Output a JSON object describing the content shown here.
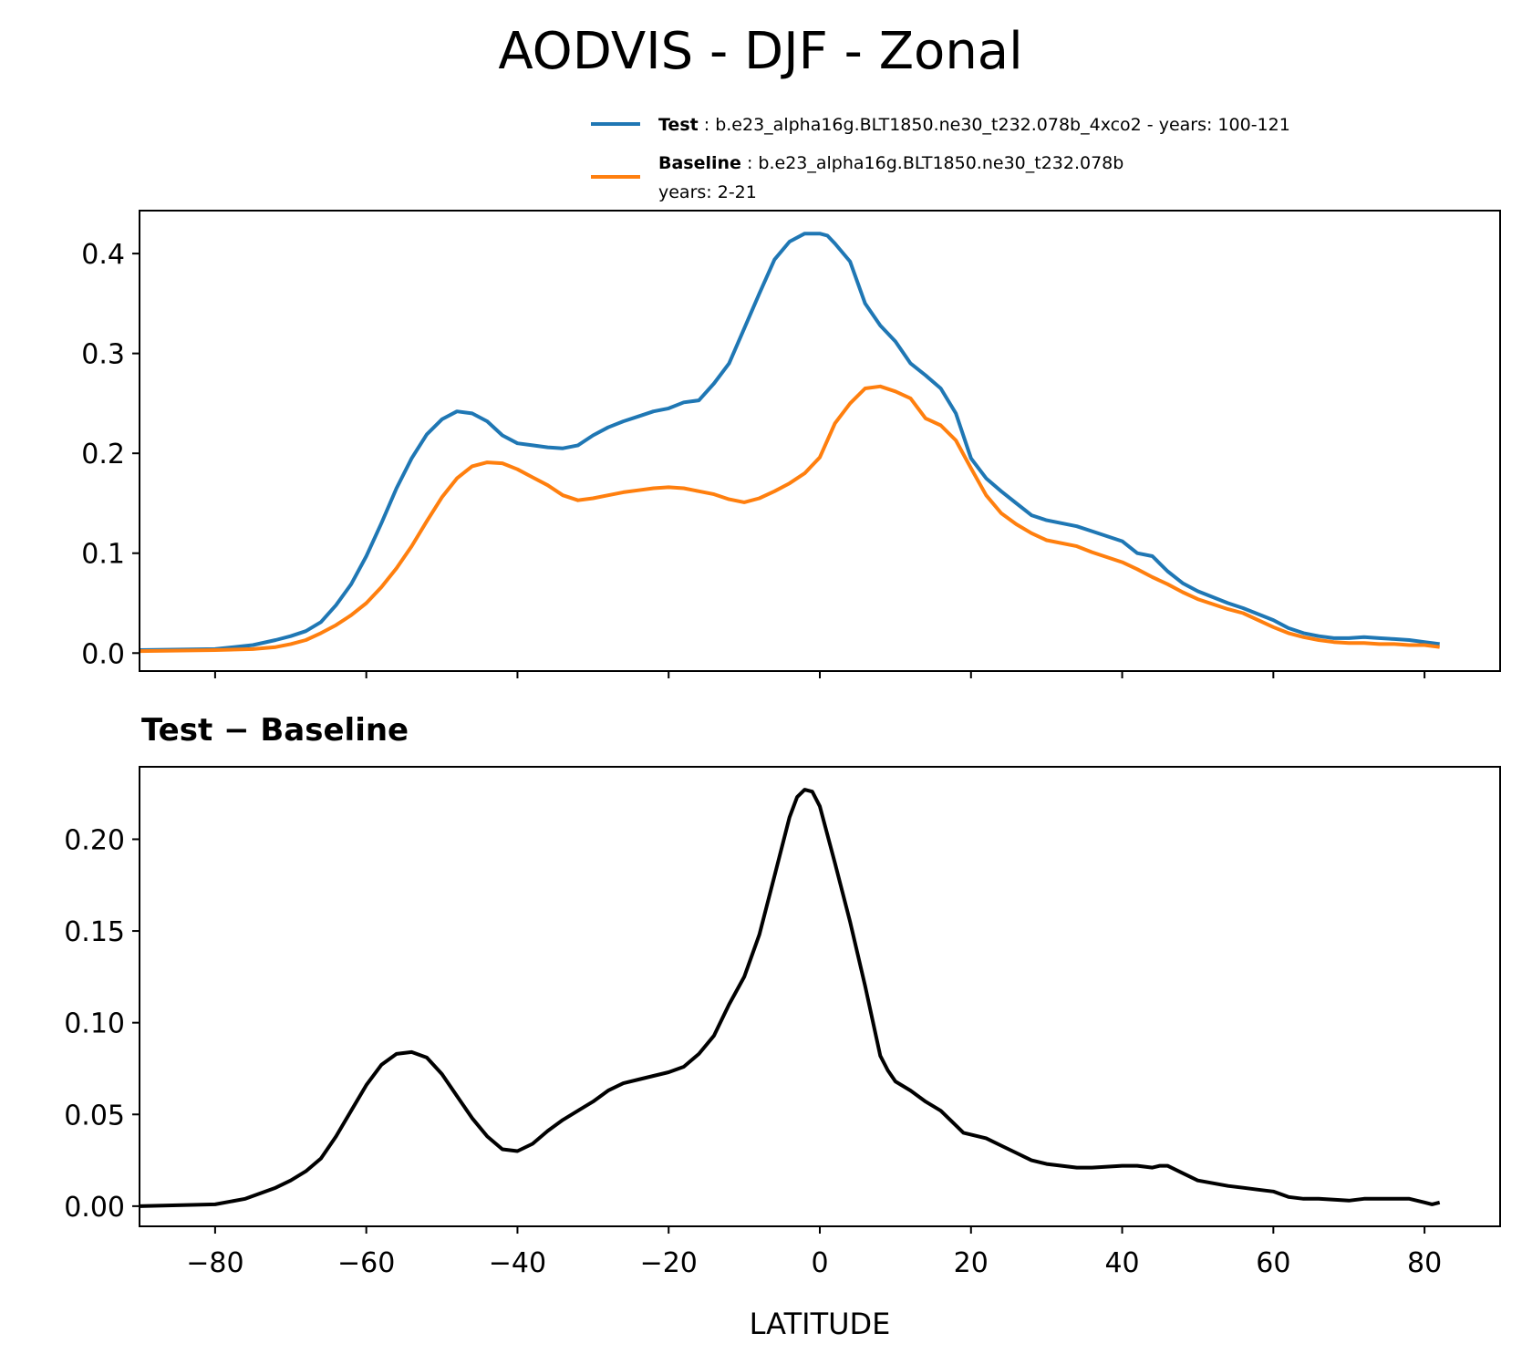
{
  "chart_data": [
    {
      "type": "line",
      "title": "AODVIS - DJF - Zonal",
      "xlim": [
        -90,
        90
      ],
      "ylim": [
        -0.018,
        0.443
      ],
      "yticks": [
        "0.0",
        "0.1",
        "0.2",
        "0.3",
        "0.4"
      ],
      "legend": {
        "placement": "above-top-right",
        "test": {
          "label": "Test",
          "separator": " : ",
          "text": "b.e23_alpha16g.BLT1850.ne30_t232.078b_4xco2 - years: 100-121"
        },
        "baseline": {
          "label": "Baseline",
          "separator": " : ",
          "text": "b.e23_alpha16g.BLT1850.ne30_t232.078b",
          "text2": "years: 2-21"
        }
      },
      "series": [
        {
          "name": "Test",
          "color": "#1f77b4",
          "x": [
            -90,
            -80,
            -75,
            -72,
            -70,
            -68,
            -66,
            -64,
            -62,
            -60,
            -58,
            -56,
            -54,
            -52,
            -50,
            -48,
            -46,
            -44,
            -42,
            -40,
            -38,
            -36,
            -34,
            -32,
            -30,
            -28,
            -26,
            -24,
            -22,
            -20,
            -18,
            -16,
            -14,
            -12,
            -10,
            -8,
            -6,
            -4,
            -2,
            0,
            1,
            2,
            4,
            6,
            8,
            10,
            12,
            14,
            16,
            18,
            20,
            22,
            24,
            26,
            28,
            30,
            34,
            36,
            40,
            42,
            44,
            46,
            48,
            50,
            54,
            56,
            60,
            62,
            64,
            66,
            68,
            70,
            72,
            74,
            76,
            78,
            80,
            82
          ],
          "values": [
            0.003,
            0.004,
            0.008,
            0.013,
            0.017,
            0.022,
            0.031,
            0.048,
            0.069,
            0.097,
            0.13,
            0.165,
            0.195,
            0.219,
            0.234,
            0.242,
            0.24,
            0.232,
            0.218,
            0.21,
            0.208,
            0.206,
            0.205,
            0.208,
            0.218,
            0.226,
            0.232,
            0.237,
            0.242,
            0.245,
            0.251,
            0.253,
            0.27,
            0.29,
            0.325,
            0.36,
            0.394,
            0.412,
            0.42,
            0.42,
            0.418,
            0.41,
            0.392,
            0.35,
            0.328,
            0.312,
            0.29,
            0.278,
            0.265,
            0.24,
            0.195,
            0.175,
            0.162,
            0.15,
            0.138,
            0.133,
            0.127,
            0.122,
            0.112,
            0.1,
            0.097,
            0.082,
            0.07,
            0.062,
            0.05,
            0.045,
            0.033,
            0.025,
            0.02,
            0.017,
            0.015,
            0.015,
            0.016,
            0.015,
            0.014,
            0.013,
            0.011,
            0.009
          ]
        },
        {
          "name": "Baseline",
          "color": "#ff7f0e",
          "x": [
            -90,
            -80,
            -75,
            -72,
            -70,
            -68,
            -66,
            -64,
            -62,
            -60,
            -58,
            -56,
            -54,
            -52,
            -50,
            -48,
            -46,
            -44,
            -42,
            -40,
            -38,
            -36,
            -34,
            -32,
            -30,
            -28,
            -26,
            -24,
            -22,
            -20,
            -18,
            -16,
            -14,
            -12,
            -10,
            -8,
            -6,
            -4,
            -2,
            0,
            2,
            4,
            6,
            8,
            10,
            12,
            14,
            16,
            18,
            20,
            22,
            24,
            26,
            28,
            30,
            34,
            36,
            40,
            42,
            44,
            46,
            48,
            50,
            54,
            56,
            60,
            62,
            64,
            66,
            68,
            70,
            72,
            74,
            76,
            78,
            80,
            82
          ],
          "values": [
            0.002,
            0.003,
            0.004,
            0.006,
            0.009,
            0.013,
            0.02,
            0.028,
            0.038,
            0.05,
            0.066,
            0.085,
            0.107,
            0.132,
            0.156,
            0.175,
            0.187,
            0.191,
            0.19,
            0.184,
            0.176,
            0.168,
            0.158,
            0.153,
            0.155,
            0.158,
            0.161,
            0.163,
            0.165,
            0.166,
            0.165,
            0.162,
            0.159,
            0.154,
            0.151,
            0.155,
            0.162,
            0.17,
            0.18,
            0.196,
            0.23,
            0.25,
            0.265,
            0.267,
            0.262,
            0.255,
            0.235,
            0.228,
            0.213,
            0.185,
            0.158,
            0.14,
            0.129,
            0.12,
            0.113,
            0.107,
            0.101,
            0.091,
            0.084,
            0.076,
            0.069,
            0.061,
            0.054,
            0.044,
            0.04,
            0.026,
            0.02,
            0.016,
            0.013,
            0.011,
            0.01,
            0.01,
            0.009,
            0.009,
            0.008,
            0.008,
            0.006
          ]
        }
      ]
    },
    {
      "type": "line",
      "title": "Test − Baseline",
      "xlabel": "LATITUDE",
      "xlim": [
        -90,
        90
      ],
      "ylim": [
        -0.011,
        0.2395
      ],
      "xticks": [
        "−80",
        "−60",
        "−40",
        "−20",
        "0",
        "20",
        "40",
        "60",
        "80"
      ],
      "yticks": [
        "0.00",
        "0.05",
        "0.10",
        "0.15",
        "0.20"
      ],
      "series": [
        {
          "name": "Test − Baseline",
          "color": "#000000",
          "x": [
            -90,
            -80,
            -76,
            -72,
            -70,
            -68,
            -66,
            -64,
            -62,
            -60,
            -58,
            -56,
            -54,
            -52,
            -50,
            -48,
            -46,
            -44,
            -42,
            -40,
            -38,
            -36,
            -34,
            -32,
            -30,
            -28,
            -26,
            -24,
            -22,
            -20,
            -18,
            -16,
            -14,
            -12,
            -10,
            -8,
            -6,
            -4,
            -3,
            -2,
            -1,
            0,
            2,
            4,
            6,
            8,
            9,
            10,
            12,
            14,
            16,
            18,
            19,
            20,
            22,
            24,
            26,
            28,
            30,
            34,
            36,
            40,
            42,
            44,
            45,
            46,
            48,
            50,
            54,
            56,
            58,
            60,
            62,
            64,
            66,
            70,
            72,
            74,
            76,
            78,
            80,
            81,
            82
          ],
          "values": [
            0.0,
            0.001,
            0.004,
            0.01,
            0.014,
            0.019,
            0.026,
            0.038,
            0.052,
            0.066,
            0.077,
            0.083,
            0.084,
            0.081,
            0.072,
            0.06,
            0.048,
            0.038,
            0.031,
            0.03,
            0.034,
            0.041,
            0.047,
            0.052,
            0.057,
            0.063,
            0.067,
            0.069,
            0.071,
            0.073,
            0.076,
            0.083,
            0.093,
            0.11,
            0.125,
            0.148,
            0.18,
            0.212,
            0.223,
            0.227,
            0.226,
            0.218,
            0.187,
            0.155,
            0.12,
            0.082,
            0.074,
            0.068,
            0.063,
            0.057,
            0.052,
            0.044,
            0.04,
            0.039,
            0.037,
            0.033,
            0.029,
            0.025,
            0.023,
            0.021,
            0.021,
            0.022,
            0.022,
            0.021,
            0.022,
            0.022,
            0.018,
            0.014,
            0.011,
            0.01,
            0.009,
            0.008,
            0.005,
            0.004,
            0.004,
            0.003,
            0.004,
            0.004,
            0.004,
            0.004,
            0.002,
            0.001,
            0.002
          ]
        }
      ]
    }
  ]
}
